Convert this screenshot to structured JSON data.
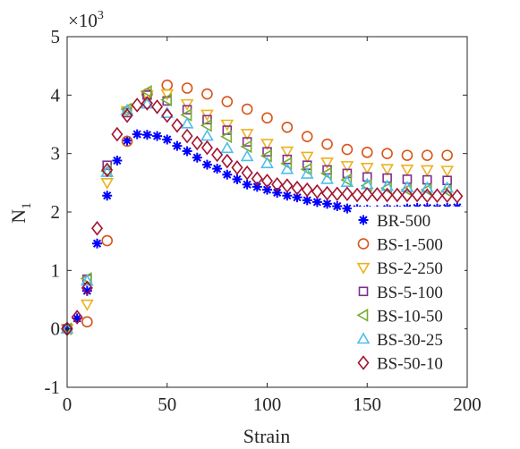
{
  "chart_data": {
    "type": "scatter",
    "title": "",
    "xlabel": "Strain",
    "ylabel": "N",
    "ylabel_subscript": "1",
    "y_multiplier_label": "×10",
    "y_multiplier_exponent": "3",
    "xlim": [
      0,
      200
    ],
    "ylim": [
      -1,
      5
    ],
    "xticks": [
      0,
      50,
      100,
      150,
      200
    ],
    "yticks": [
      -1,
      0,
      1,
      2,
      3,
      4,
      5
    ],
    "grid": false,
    "legend_position": "bottom-right",
    "series": [
      {
        "name": "BR-500",
        "marker": "asterisk",
        "color": "#0000ff",
        "x": [
          0,
          5,
          10,
          15,
          20,
          25,
          30,
          35,
          40,
          45,
          50,
          55,
          60,
          65,
          70,
          75,
          80,
          85,
          90,
          95,
          100,
          105,
          110,
          115,
          120,
          125,
          130,
          135,
          140,
          145,
          150,
          155,
          160,
          165,
          170,
          175,
          180,
          185,
          190,
          195
        ],
        "y": [
          0,
          0.18,
          0.65,
          1.46,
          2.28,
          2.88,
          3.22,
          3.33,
          3.32,
          3.3,
          3.24,
          3.13,
          3.04,
          2.93,
          2.81,
          2.74,
          2.64,
          2.56,
          2.47,
          2.43,
          2.38,
          2.33,
          2.28,
          2.25,
          2.2,
          2.17,
          2.14,
          2.1,
          2.06,
          2.05,
          2.04,
          2.03,
          2.05,
          2.04,
          2.06,
          2.07,
          2.07,
          2.06,
          2.07,
          2.08
        ]
      },
      {
        "name": "BS-1-500",
        "marker": "circle",
        "color": "#d95319",
        "x": [
          0,
          10,
          20,
          30,
          40,
          50,
          60,
          70,
          80,
          90,
          100,
          110,
          120,
          130,
          140,
          150,
          160,
          170,
          180,
          190
        ],
        "y": [
          0,
          0.12,
          1.51,
          3.21,
          4.02,
          4.17,
          4.12,
          4.02,
          3.89,
          3.76,
          3.61,
          3.45,
          3.29,
          3.16,
          3.07,
          3.02,
          3.0,
          2.97,
          2.97,
          2.97
        ]
      },
      {
        "name": "BS-2-250",
        "marker": "triangle-down",
        "color": "#edb120",
        "x": [
          0,
          10,
          20,
          30,
          40,
          50,
          60,
          70,
          80,
          90,
          100,
          110,
          120,
          130,
          140,
          150,
          160,
          170,
          180,
          190
        ],
        "y": [
          0,
          0.42,
          2.5,
          3.73,
          4.0,
          4.02,
          3.85,
          3.67,
          3.5,
          3.34,
          3.17,
          3.04,
          2.95,
          2.85,
          2.79,
          2.76,
          2.74,
          2.73,
          2.72,
          2.71
        ]
      },
      {
        "name": "BS-5-100",
        "marker": "square",
        "color": "#7e2f8e",
        "x": [
          0,
          10,
          20,
          30,
          40,
          50,
          60,
          70,
          80,
          90,
          100,
          110,
          120,
          130,
          140,
          150,
          160,
          170,
          180,
          190
        ],
        "y": [
          0,
          0.85,
          2.8,
          3.7,
          4.0,
          3.9,
          3.75,
          3.58,
          3.4,
          3.2,
          3.03,
          2.9,
          2.8,
          2.72,
          2.66,
          2.6,
          2.58,
          2.56,
          2.55,
          2.54
        ]
      },
      {
        "name": "BS-10-50",
        "marker": "triangle-left",
        "color": "#77ac30",
        "x": [
          0,
          10,
          20,
          30,
          40,
          50,
          60,
          70,
          80,
          90,
          100,
          110,
          120,
          130,
          140,
          150,
          160,
          170,
          180,
          190
        ],
        "y": [
          0,
          0.86,
          2.7,
          3.76,
          4.06,
          3.92,
          3.66,
          3.48,
          3.29,
          3.12,
          2.96,
          2.83,
          2.73,
          2.66,
          2.55,
          2.45,
          2.41,
          2.38,
          2.38,
          2.36
        ]
      },
      {
        "name": "BS-30-25",
        "marker": "triangle-up",
        "color": "#4dbeee",
        "x": [
          0,
          10,
          20,
          30,
          40,
          50,
          60,
          70,
          80,
          90,
          100,
          110,
          120,
          130,
          140,
          150,
          160,
          170,
          180,
          190
        ],
        "y": [
          0,
          0.82,
          2.68,
          3.74,
          3.85,
          3.69,
          3.51,
          3.3,
          3.09,
          2.95,
          2.83,
          2.73,
          2.65,
          2.56,
          2.51,
          2.47,
          2.44,
          2.42,
          2.41,
          2.41
        ]
      },
      {
        "name": "BS-50-10",
        "marker": "diamond",
        "color": "#a2142f",
        "x": [
          0,
          5,
          10,
          15,
          20,
          25,
          30,
          35,
          40,
          45,
          50,
          55,
          60,
          65,
          70,
          75,
          80,
          85,
          90,
          95,
          100,
          105,
          110,
          115,
          120,
          125,
          130,
          135,
          140,
          145,
          150,
          155,
          160,
          165,
          170,
          175,
          180,
          185,
          190,
          195
        ],
        "y": [
          0,
          0.2,
          0.7,
          1.72,
          2.72,
          3.33,
          3.65,
          3.83,
          3.86,
          3.8,
          3.65,
          3.48,
          3.3,
          3.18,
          3.1,
          2.98,
          2.87,
          2.76,
          2.67,
          2.57,
          2.53,
          2.47,
          2.45,
          2.41,
          2.38,
          2.35,
          2.32,
          2.31,
          2.31,
          2.29,
          2.3,
          2.3,
          2.29,
          2.29,
          2.29,
          2.29,
          2.28,
          2.28,
          2.28,
          2.27
        ]
      }
    ]
  }
}
